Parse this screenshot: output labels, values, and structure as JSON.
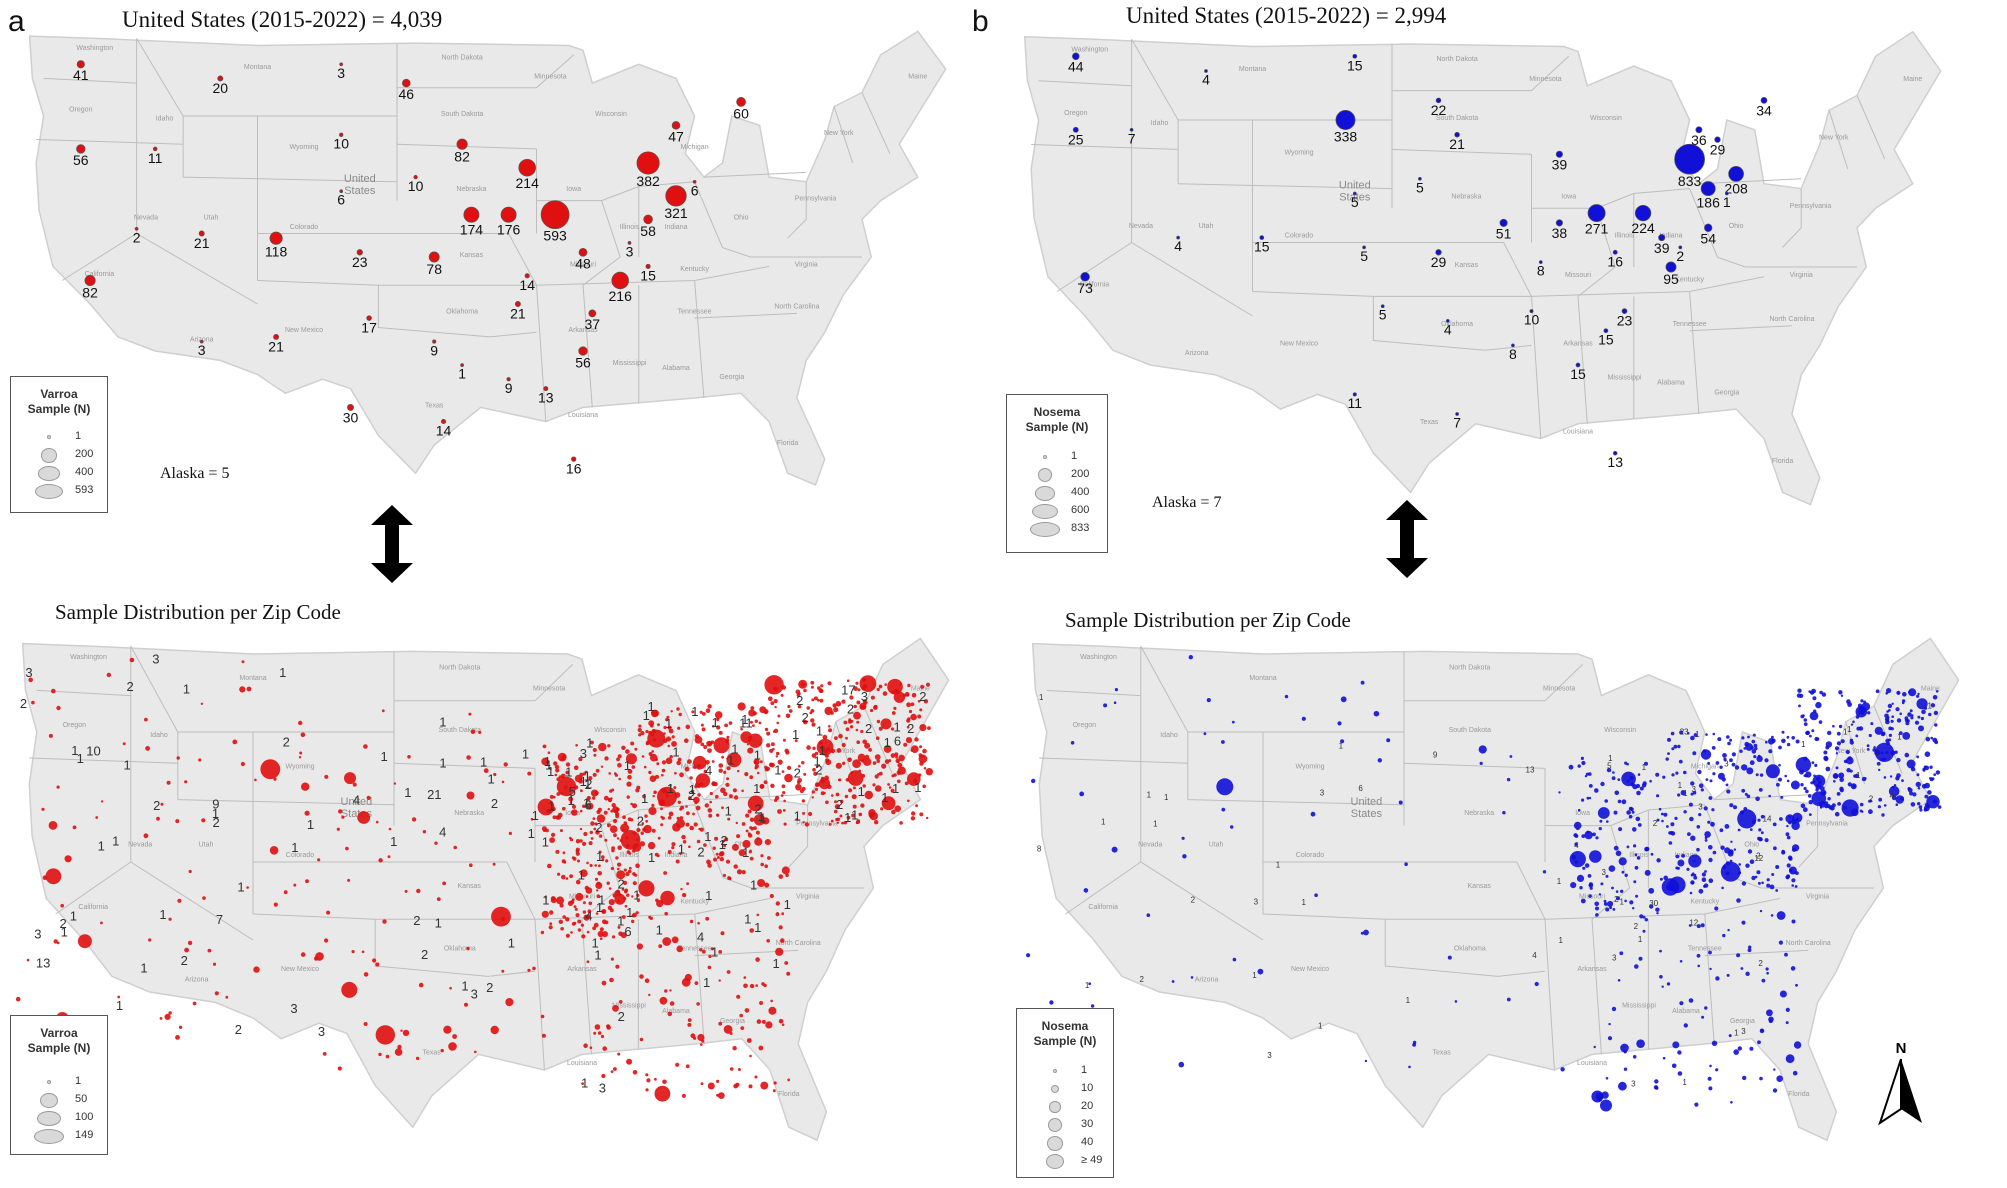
{
  "panels": [
    {
      "letter": "a",
      "top_title": "United States (2015-2022) =  4,039",
      "bottom_title": "Sample Distribution per Zip Code",
      "alaska": "Alaska = 5",
      "color": "#e01010",
      "legend_top": {
        "title": [
          "Varroa",
          "Sample (N)"
        ],
        "entries": [
          [
            "1",
            1
          ],
          [
            "200",
            200
          ],
          [
            "400",
            400
          ],
          [
            "593",
            593
          ]
        ]
      },
      "legend_bottom": {
        "title": [
          "Varroa",
          "Sample (N)"
        ],
        "entries": [
          [
            "1",
            1
          ],
          [
            "50",
            50
          ],
          [
            "100",
            100
          ],
          [
            "149",
            149
          ]
        ]
      },
      "state_counts": [
        {
          "label": "41",
          "value": 41,
          "state": "Washington"
        },
        {
          "label": "20",
          "value": 20,
          "state": "Montana"
        },
        {
          "label": "3",
          "value": 3,
          "state": "North Dakota"
        },
        {
          "label": "46",
          "value": 46,
          "state": "Minnesota"
        },
        {
          "label": "60",
          "value": 60,
          "state": "Maine"
        },
        {
          "label": "56",
          "value": 56,
          "state": "Oregon"
        },
        {
          "label": "11",
          "value": 11,
          "state": "Idaho"
        },
        {
          "label": "10",
          "value": 10,
          "state": "South Dakota"
        },
        {
          "label": "82",
          "value": 82,
          "state": "Wisconsin"
        },
        {
          "label": "47",
          "value": 47,
          "state": "Vermont"
        },
        {
          "label": "214",
          "value": 214,
          "state": "Michigan"
        },
        {
          "label": "382",
          "value": 382,
          "state": "New York"
        },
        {
          "label": "10",
          "value": 10,
          "state": "Iowa"
        },
        {
          "label": "6",
          "value": 6,
          "state": "Nebraska"
        },
        {
          "label": "321",
          "value": 321,
          "state": "Massachusetts"
        },
        {
          "label": "6",
          "value": 6,
          "state": "Rhode Island"
        },
        {
          "label": "174",
          "value": 174,
          "state": "Illinois"
        },
        {
          "label": "176",
          "value": 176,
          "state": "Indiana"
        },
        {
          "label": "593",
          "value": 593,
          "state": "Ohio"
        },
        {
          "label": "58",
          "value": 58,
          "state": "New Jersey"
        },
        {
          "label": "2",
          "value": 2,
          "state": "Nevada"
        },
        {
          "label": "21",
          "value": 21,
          "state": "Utah"
        },
        {
          "label": "118",
          "value": 118,
          "state": "Colorado"
        },
        {
          "label": "23",
          "value": 23,
          "state": "Kansas"
        },
        {
          "label": "78",
          "value": 78,
          "state": "Missouri"
        },
        {
          "label": "48",
          "value": 48,
          "state": "West Virginia"
        },
        {
          "label": "3",
          "value": 3,
          "state": "Maryland"
        },
        {
          "label": "15",
          "value": 15,
          "state": "Delaware"
        },
        {
          "label": "216",
          "value": 216,
          "state": "Virginia"
        },
        {
          "label": "14",
          "value": 14,
          "state": "Kentucky"
        },
        {
          "label": "82",
          "value": 82,
          "state": "California"
        },
        {
          "label": "21",
          "value": 21,
          "state": "Tennessee"
        },
        {
          "label": "37",
          "value": 37,
          "state": "North Carolina"
        },
        {
          "label": "17",
          "value": 17,
          "state": "Oklahoma"
        },
        {
          "label": "3",
          "value": 3,
          "state": "Arizona"
        },
        {
          "label": "21",
          "value": 21,
          "state": "New Mexico"
        },
        {
          "label": "9",
          "value": 9,
          "state": "Arkansas"
        },
        {
          "label": "1",
          "value": 1,
          "state": "Mississippi"
        },
        {
          "label": "9",
          "value": 9,
          "state": "Alabama"
        },
        {
          "label": "56",
          "value": 56,
          "state": "South Carolina"
        },
        {
          "label": "13",
          "value": 13,
          "state": "Georgia"
        },
        {
          "label": "30",
          "value": 30,
          "state": "Texas"
        },
        {
          "label": "14",
          "value": 14,
          "state": "Louisiana"
        },
        {
          "label": "16",
          "value": 16,
          "state": "Florida"
        }
      ],
      "zip_labels": [
        "1",
        "1",
        "1",
        "1",
        "2",
        "1",
        "1",
        "1",
        "2",
        "1",
        "1",
        "1",
        "2",
        "2",
        "13",
        "1",
        "1",
        "2",
        "11",
        "1",
        "2",
        "2",
        "1",
        "1",
        "1",
        "3",
        "1",
        "1",
        "4",
        "1",
        "1",
        "2",
        "1",
        "10",
        "1",
        "1",
        "1",
        "1",
        "1",
        "2",
        "1",
        "7",
        "4",
        "1",
        "1",
        "4",
        "2",
        "1",
        "1",
        "6",
        "3",
        "1",
        "2",
        "1",
        "1",
        "1",
        "1",
        "1",
        "1",
        "3",
        "1",
        "2",
        "1",
        "1",
        "4",
        "3",
        "1",
        "9",
        "1",
        "1",
        "4",
        "2",
        "1",
        "3",
        "1",
        "2",
        "2",
        "1",
        "1",
        "6",
        "1",
        "2",
        "1",
        "1",
        "1",
        "1",
        "2",
        "21",
        "1",
        "1",
        "1",
        "2",
        "2",
        "3",
        "2",
        "1",
        "1",
        "2",
        "1",
        "5",
        "1",
        "1",
        "1",
        "2",
        "1",
        "1",
        "1",
        "1",
        "1",
        "1",
        "1",
        "1",
        "1",
        "1",
        "2",
        "1",
        "2",
        "1",
        "2",
        "3",
        "2",
        "2",
        "3",
        "1",
        "1",
        "17",
        "1",
        "1",
        "1",
        "2",
        "3",
        "1",
        "1",
        "1",
        "1",
        "1",
        "1",
        "2",
        "1",
        "1",
        "1",
        "1",
        "1",
        "6",
        "1",
        "2",
        "1",
        "1",
        "1",
        "1",
        "1",
        "1",
        "1"
      ],
      "zip_notes": "numeric labels of Varroa samples per zip code"
    },
    {
      "letter": "b",
      "top_title": "United States (2015-2022) = 2,994",
      "bottom_title": "Sample Distribution per Zip Code",
      "alaska": "Alaska = 7",
      "color": "#1010d8",
      "legend_top": {
        "title": [
          "Nosema",
          "Sample (N)"
        ],
        "entries": [
          [
            "1",
            1
          ],
          [
            "200",
            200
          ],
          [
            "400",
            400
          ],
          [
            "600",
            600
          ],
          [
            "833",
            833
          ]
        ]
      },
      "legend_bottom": {
        "title": [
          "Nosema",
          "Sample (N)"
        ],
        "entries": [
          [
            "1",
            1
          ],
          [
            "10",
            10
          ],
          [
            "20",
            20
          ],
          [
            "30",
            30
          ],
          [
            "40",
            40
          ],
          [
            "≥ 49",
            49
          ]
        ]
      },
      "state_counts": [
        {
          "label": "44",
          "value": 44,
          "state": "Washington"
        },
        {
          "label": "4",
          "value": 4,
          "state": "Montana"
        },
        {
          "label": "15",
          "value": 15,
          "state": "North Dakota"
        },
        {
          "label": "22",
          "value": 22,
          "state": "Minnesota"
        },
        {
          "label": "34",
          "value": 34,
          "state": "Maine"
        },
        {
          "label": "25",
          "value": 25,
          "state": "Oregon"
        },
        {
          "label": "7",
          "value": 7,
          "state": "Idaho"
        },
        {
          "label": "338",
          "value": 338,
          "state": "South Dakota"
        },
        {
          "label": "21",
          "value": 21,
          "state": "Wisconsin"
        },
        {
          "label": "36",
          "value": 36,
          "state": "Vermont"
        },
        {
          "label": "29",
          "value": 29,
          "state": "New Hampshire"
        },
        {
          "label": "39",
          "value": 39,
          "state": "Michigan"
        },
        {
          "label": "833",
          "value": 833,
          "state": "New York"
        },
        {
          "label": "208",
          "value": 208,
          "state": "Massachusetts"
        },
        {
          "label": "186",
          "value": 186,
          "state": "Connecticut"
        },
        {
          "label": "1",
          "value": 1,
          "state": "Rhode Island"
        },
        {
          "label": "5",
          "value": 5,
          "state": "Iowa"
        },
        {
          "label": "5",
          "value": 5,
          "state": "Nebraska"
        },
        {
          "label": "51",
          "value": 51,
          "state": "Illinois"
        },
        {
          "label": "38",
          "value": 38,
          "state": "Indiana"
        },
        {
          "label": "271",
          "value": 271,
          "state": "Ohio"
        },
        {
          "label": "224",
          "value": 224,
          "state": "Pennsylvania"
        },
        {
          "label": "54",
          "value": 54,
          "state": "New Jersey"
        },
        {
          "label": "39",
          "value": 39,
          "state": "Maryland"
        },
        {
          "label": "2",
          "value": 2,
          "state": "Delaware"
        },
        {
          "label": "4",
          "value": 4,
          "state": "Nevada"
        },
        {
          "label": "15",
          "value": 15,
          "state": "Colorado"
        },
        {
          "label": "5",
          "value": 5,
          "state": "Kansas"
        },
        {
          "label": "29",
          "value": 29,
          "state": "Missouri"
        },
        {
          "label": "8",
          "value": 8,
          "state": "Kentucky"
        },
        {
          "label": "16",
          "value": 16,
          "state": "West Virginia"
        },
        {
          "label": "95",
          "value": 95,
          "state": "Virginia"
        },
        {
          "label": "73",
          "value": 73,
          "state": "California"
        },
        {
          "label": "5",
          "value": 5,
          "state": "Oklahoma"
        },
        {
          "label": "4",
          "value": 4,
          "state": "Arkansas"
        },
        {
          "label": "10",
          "value": 10,
          "state": "Tennessee"
        },
        {
          "label": "23",
          "value": 23,
          "state": "North Carolina"
        },
        {
          "label": "15",
          "value": 15,
          "state": "South Carolina"
        },
        {
          "label": "8",
          "value": 8,
          "state": "Alabama"
        },
        {
          "label": "15",
          "value": 15,
          "state": "Georgia"
        },
        {
          "label": "11",
          "value": 11,
          "state": "Texas"
        },
        {
          "label": "7",
          "value": 7,
          "state": "Louisiana"
        },
        {
          "label": "13",
          "value": 13,
          "state": "Florida"
        }
      ],
      "zip_labels": [
        "30",
        "1",
        "12",
        "3",
        "9",
        "1",
        "3",
        "2",
        "4",
        "1",
        "1",
        "1",
        "6",
        "4",
        "1",
        "5",
        "1",
        "3",
        "1",
        "1",
        "2",
        "1",
        "12",
        "1",
        "1",
        "1",
        "1",
        "3",
        "1",
        "13",
        "2",
        "3",
        "1",
        "1",
        "4",
        "23",
        "8",
        "1",
        "1",
        "1",
        "3",
        "1",
        "2",
        "14",
        "1",
        "1",
        "1",
        "2",
        "3",
        "1",
        "2",
        "3",
        "1",
        "1",
        "2",
        "1",
        "3",
        "1",
        "1",
        "1",
        "1",
        "3",
        "2"
      ]
    }
  ],
  "north_label": "N"
}
